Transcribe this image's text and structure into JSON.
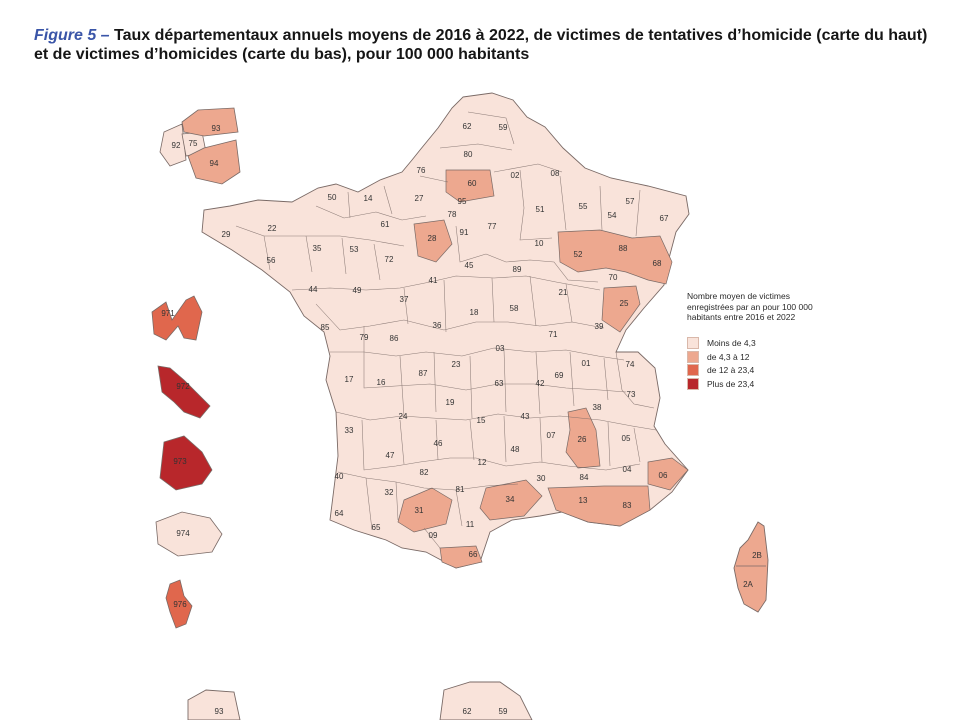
{
  "figure": {
    "label": "Figure 5 –",
    "title": "Taux départementaux annuels moyens de 2016 à 2022, de victimes de tentatives d’homicide (carte du haut) et de victimes d’homicides (carte du bas), pour 100 000 habitants"
  },
  "legend": {
    "title": "Nombre moyen de victimes enregistrées par an pour 100 000 habitants entre 2016 et 2022",
    "classes": [
      {
        "label": "Moins de 4,3",
        "color": "#f9e3da"
      },
      {
        "label": "de 4,3 à 12",
        "color": "#eda88f"
      },
      {
        "label": "de 12 à 23,4",
        "color": "#e0674d"
      },
      {
        "label": "Plus de 23,4",
        "color": "#b8272b"
      }
    ]
  },
  "departments": [
    {
      "code": "62",
      "class": 0
    },
    {
      "code": "59",
      "class": 0
    },
    {
      "code": "80",
      "class": 0
    },
    {
      "code": "02",
      "class": 0
    },
    {
      "code": "08",
      "class": 0
    },
    {
      "code": "76",
      "class": 0
    },
    {
      "code": "60",
      "class": 1
    },
    {
      "code": "95",
      "class": 0
    },
    {
      "code": "50",
      "class": 0
    },
    {
      "code": "14",
      "class": 0
    },
    {
      "code": "27",
      "class": 0
    },
    {
      "code": "78",
      "class": 0
    },
    {
      "code": "91",
      "class": 0
    },
    {
      "code": "77",
      "class": 0
    },
    {
      "code": "51",
      "class": 0
    },
    {
      "code": "55",
      "class": 0
    },
    {
      "code": "57",
      "class": 0
    },
    {
      "code": "54",
      "class": 0
    },
    {
      "code": "67",
      "class": 0
    },
    {
      "code": "29",
      "class": 0
    },
    {
      "code": "22",
      "class": 0
    },
    {
      "code": "61",
      "class": 0
    },
    {
      "code": "28",
      "class": 1
    },
    {
      "code": "10",
      "class": 0
    },
    {
      "code": "52",
      "class": 1
    },
    {
      "code": "88",
      "class": 1
    },
    {
      "code": "68",
      "class": 1
    },
    {
      "code": "56",
      "class": 0
    },
    {
      "code": "35",
      "class": 0
    },
    {
      "code": "53",
      "class": 0
    },
    {
      "code": "72",
      "class": 0
    },
    {
      "code": "45",
      "class": 0
    },
    {
      "code": "89",
      "class": 0
    },
    {
      "code": "70",
      "class": 0
    },
    {
      "code": "44",
      "class": 0
    },
    {
      "code": "49",
      "class": 0
    },
    {
      "code": "41",
      "class": 0
    },
    {
      "code": "21",
      "class": 0
    },
    {
      "code": "25",
      "class": 1
    },
    {
      "code": "37",
      "class": 0
    },
    {
      "code": "58",
      "class": 0
    },
    {
      "code": "85",
      "class": 0
    },
    {
      "code": "36",
      "class": 0
    },
    {
      "code": "18",
      "class": 0
    },
    {
      "code": "39",
      "class": 0
    },
    {
      "code": "79",
      "class": 0
    },
    {
      "code": "86",
      "class": 0
    },
    {
      "code": "71",
      "class": 0
    },
    {
      "code": "03",
      "class": 0
    },
    {
      "code": "01",
      "class": 0
    },
    {
      "code": "74",
      "class": 0
    },
    {
      "code": "17",
      "class": 0
    },
    {
      "code": "87",
      "class": 0
    },
    {
      "code": "23",
      "class": 0
    },
    {
      "code": "69",
      "class": 0
    },
    {
      "code": "16",
      "class": 0
    },
    {
      "code": "63",
      "class": 0
    },
    {
      "code": "42",
      "class": 0
    },
    {
      "code": "73",
      "class": 0
    },
    {
      "code": "38",
      "class": 0
    },
    {
      "code": "19",
      "class": 0
    },
    {
      "code": "24",
      "class": 0
    },
    {
      "code": "33",
      "class": 0
    },
    {
      "code": "15",
      "class": 0
    },
    {
      "code": "43",
      "class": 0
    },
    {
      "code": "26",
      "class": 1
    },
    {
      "code": "07",
      "class": 0
    },
    {
      "code": "05",
      "class": 0
    },
    {
      "code": "46",
      "class": 0
    },
    {
      "code": "48",
      "class": 0
    },
    {
      "code": "47",
      "class": 0
    },
    {
      "code": "12",
      "class": 0
    },
    {
      "code": "04",
      "class": 0
    },
    {
      "code": "06",
      "class": 1
    },
    {
      "code": "40",
      "class": 0
    },
    {
      "code": "82",
      "class": 0
    },
    {
      "code": "30",
      "class": 0
    },
    {
      "code": "84",
      "class": 0
    },
    {
      "code": "81",
      "class": 0
    },
    {
      "code": "34",
      "class": 1
    },
    {
      "code": "13",
      "class": 1
    },
    {
      "code": "83",
      "class": 1
    },
    {
      "code": "32",
      "class": 0
    },
    {
      "code": "64",
      "class": 0
    },
    {
      "code": "31",
      "class": 1
    },
    {
      "code": "65",
      "class": 0
    },
    {
      "code": "11",
      "class": 0
    },
    {
      "code": "09",
      "class": 0
    },
    {
      "code": "66",
      "class": 1
    },
    {
      "code": "2B",
      "class": 1
    },
    {
      "code": "2A",
      "class": 1
    },
    {
      "code": "93",
      "class": 1
    },
    {
      "code": "75",
      "class": 0
    },
    {
      "code": "92",
      "class": 0
    },
    {
      "code": "94",
      "class": 1
    },
    {
      "code": "971",
      "class": 1
    },
    {
      "code": "972",
      "class": 3
    },
    {
      "code": "973",
      "class": 3
    },
    {
      "code": "974",
      "class": 0
    },
    {
      "code": "976",
      "class": 2
    }
  ],
  "lower_map_labels": [
    "93",
    "62",
    "59"
  ]
}
